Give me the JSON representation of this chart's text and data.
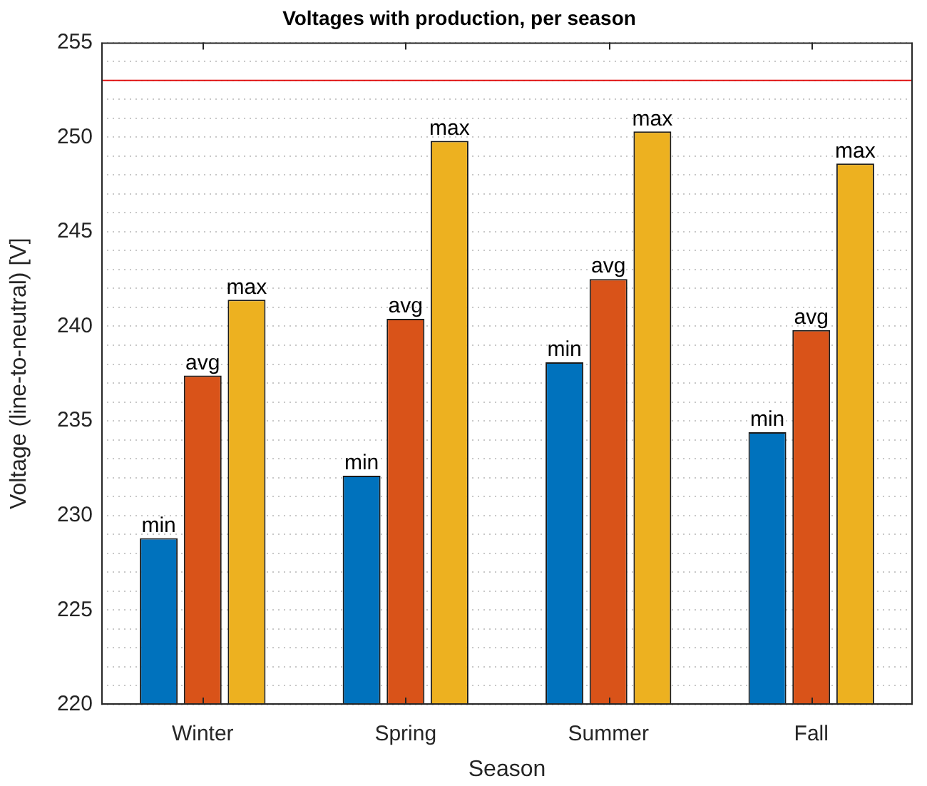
{
  "chart_data": {
    "type": "bar",
    "title": "Voltages with production, per season",
    "xlabel": "Season",
    "ylabel": "Voltage (line-to-neutral) [V]",
    "categories": [
      "Winter",
      "Spring",
      "Summer",
      "Fall"
    ],
    "series": [
      {
        "name": "min",
        "color": "#0072bd",
        "values": [
          228.8,
          232.1,
          238.1,
          234.4
        ]
      },
      {
        "name": "avg",
        "color": "#d95319",
        "values": [
          237.4,
          240.4,
          242.5,
          239.8
        ]
      },
      {
        "name": "max",
        "color": "#edb120",
        "values": [
          241.4,
          249.8,
          250.3,
          248.6
        ]
      }
    ],
    "ylim": [
      220,
      255
    ],
    "yticks": [
      220,
      {
        "value": 221,
        "label": null
      },
      {
        "value": 222,
        "label": null
      },
      {
        "value": 223,
        "label": null
      },
      {
        "value": 224,
        "label": null
      },
      225,
      {
        "value": 226,
        "label": null
      },
      {
        "value": 227,
        "label": null
      },
      {
        "value": 228,
        "label": null
      },
      {
        "value": 229,
        "label": null
      },
      230,
      {
        "value": 231,
        "label": null
      },
      {
        "value": 232,
        "label": null
      },
      {
        "value": 233,
        "label": null
      },
      {
        "value": 234,
        "label": null
      },
      235,
      {
        "value": 236,
        "label": null
      },
      {
        "value": 237,
        "label": null
      },
      {
        "value": 238,
        "label": null
      },
      {
        "value": 239,
        "label": null
      },
      240,
      {
        "value": 241,
        "label": null
      },
      {
        "value": 242,
        "label": null
      },
      {
        "value": 243,
        "label": null
      },
      {
        "value": 244,
        "label": null
      },
      245,
      {
        "value": 246,
        "label": null
      },
      {
        "value": 247,
        "label": null
      },
      {
        "value": 248,
        "label": null
      },
      {
        "value": 249,
        "label": null
      },
      250,
      {
        "value": 251,
        "label": null
      },
      {
        "value": 252,
        "label": null
      },
      {
        "value": 253,
        "label": null
      },
      {
        "value": 254,
        "label": null
      },
      255
    ],
    "ref_lines": [
      {
        "axis": "y",
        "value": 253,
        "color": "#e01010"
      }
    ],
    "grid": "y"
  }
}
